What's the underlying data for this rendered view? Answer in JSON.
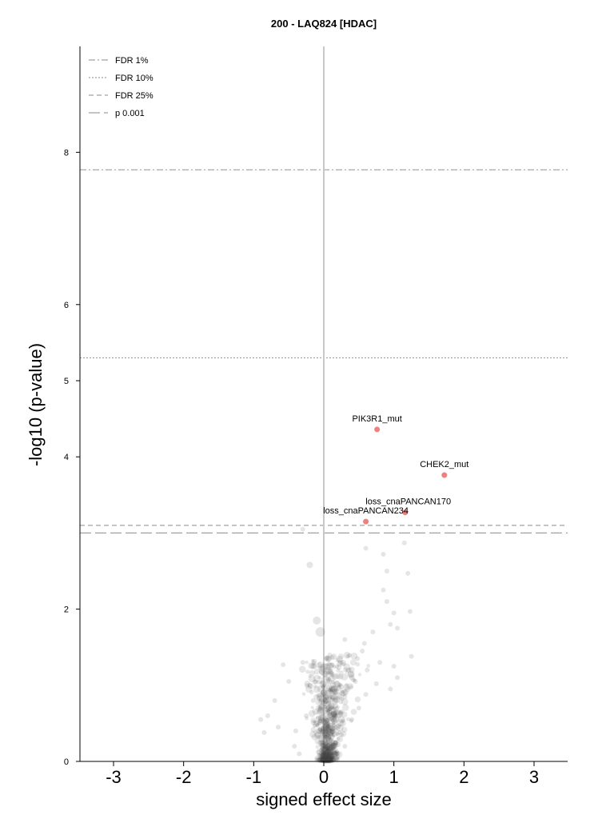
{
  "chart_data": {
    "type": "scatter",
    "title": "200 - LAQ824 [HDAC]",
    "xlabel": "signed effect size",
    "ylabel": "-log10 (p-value)",
    "xlim": [
      -3.5,
      3.5
    ],
    "ylim": [
      0,
      9.3
    ],
    "x_ticks": [
      -3,
      -2,
      -1,
      0,
      1,
      2,
      3
    ],
    "x_tick_labels": [
      "-3",
      "-2",
      "-1",
      "0",
      "1",
      "2",
      "3"
    ],
    "y_ticks": [
      0,
      2,
      4,
      5,
      6,
      8
    ],
    "y_tick_labels": [
      "0",
      "2",
      "4",
      "5",
      "6",
      "8"
    ],
    "grid": false,
    "legend_position": "top-left",
    "thresholds": [
      {
        "name": "FDR 1%",
        "y": 7.77,
        "style": "dashdot"
      },
      {
        "name": "FDR 10%",
        "y": 5.3,
        "style": "dotted"
      },
      {
        "name": "FDR 25%",
        "y": 3.1,
        "style": "dashed"
      },
      {
        "name": "p 0.001",
        "y": 3.0,
        "style": "longdash"
      }
    ],
    "significant_points": [
      {
        "label": "PIK3R1_mut",
        "x": 0.76,
        "y": 4.36
      },
      {
        "label": "CHEK2_mut",
        "x": 1.72,
        "y": 3.76
      },
      {
        "label": "loss_cnaPANCAN170",
        "x": 1.16,
        "y": 3.27
      },
      {
        "label": "loss_cnaPANCAN234",
        "x": 0.6,
        "y": 3.15
      }
    ],
    "background_points": [
      [
        -0.2,
        2.58,
        4
      ],
      [
        -0.1,
        1.85,
        5
      ],
      [
        -0.05,
        1.7,
        6
      ],
      [
        0.02,
        1.2,
        8
      ],
      [
        0.03,
        1.05,
        7
      ],
      [
        0.04,
        0.9,
        7
      ],
      [
        0.03,
        0.78,
        6
      ],
      [
        0.02,
        0.65,
        6
      ],
      [
        0.05,
        0.55,
        5
      ],
      [
        0.02,
        0.45,
        5
      ],
      [
        0.6,
        2.8,
        3
      ],
      [
        0.85,
        2.72,
        3
      ],
      [
        0.9,
        2.5,
        3
      ],
      [
        1.2,
        2.47,
        3
      ],
      [
        0.85,
        2.25,
        3
      ],
      [
        1.15,
        2.87,
        3
      ],
      [
        0.9,
        2.1,
        3
      ],
      [
        1.0,
        1.95,
        3
      ],
      [
        1.23,
        1.97,
        3
      ],
      [
        0.95,
        1.8,
        3
      ],
      [
        1.05,
        1.75,
        3
      ],
      [
        0.7,
        1.7,
        3
      ],
      [
        0.3,
        1.6,
        3
      ],
      [
        0.55,
        1.45,
        3
      ],
      [
        0.8,
        1.3,
        3
      ],
      [
        1.0,
        1.25,
        3
      ],
      [
        1.25,
        1.38,
        3
      ],
      [
        1.05,
        1.1,
        3
      ],
      [
        0.95,
        0.95,
        3
      ],
      [
        0.6,
        0.88,
        3
      ],
      [
        -0.3,
        1.3,
        3
      ],
      [
        -0.58,
        1.27,
        3
      ],
      [
        -0.5,
        1.05,
        3
      ],
      [
        -0.7,
        0.8,
        3
      ],
      [
        -0.8,
        0.6,
        3
      ],
      [
        -0.9,
        0.55,
        3
      ],
      [
        -0.65,
        0.45,
        3
      ],
      [
        -0.85,
        0.38,
        3
      ],
      [
        -0.42,
        0.2,
        3
      ],
      [
        -0.35,
        0.1,
        3
      ],
      [
        -0.4,
        0.4,
        3
      ],
      [
        0.35,
        1.2,
        3
      ],
      [
        0.45,
        1.05,
        3
      ],
      [
        0.3,
        0.85,
        3
      ],
      [
        0.5,
        0.7,
        3
      ],
      [
        0.4,
        0.55,
        3
      ],
      [
        0.25,
        0.35,
        3
      ],
      [
        0.3,
        0.2,
        3
      ],
      [
        0.2,
        0.1,
        3
      ],
      [
        -0.2,
        1.0,
        3
      ],
      [
        -0.15,
        0.8,
        3
      ],
      [
        -0.25,
        0.6,
        3
      ],
      [
        -0.1,
        0.5,
        3
      ],
      [
        0.15,
        0.6,
        3
      ],
      [
        0.1,
        0.95,
        3
      ],
      [
        -0.3,
        3.05,
        3
      ],
      [
        0.58,
        1.55,
        3
      ],
      [
        0.75,
        1.02,
        3
      ],
      [
        0.62,
        1.2,
        3
      ],
      [
        0.48,
        1.35,
        3
      ]
    ],
    "background_cloud": {
      "count": 650,
      "x_center": 0.05,
      "x_spread": 0.28,
      "y_max": 1.4,
      "right_skew": 0.35
    }
  },
  "colors": {
    "background_point": "#444444",
    "highlight_point": "#f08080",
    "zero_line": "#c8c8c8",
    "threshold_line": "#a0a0a0",
    "axis": "#000000"
  }
}
